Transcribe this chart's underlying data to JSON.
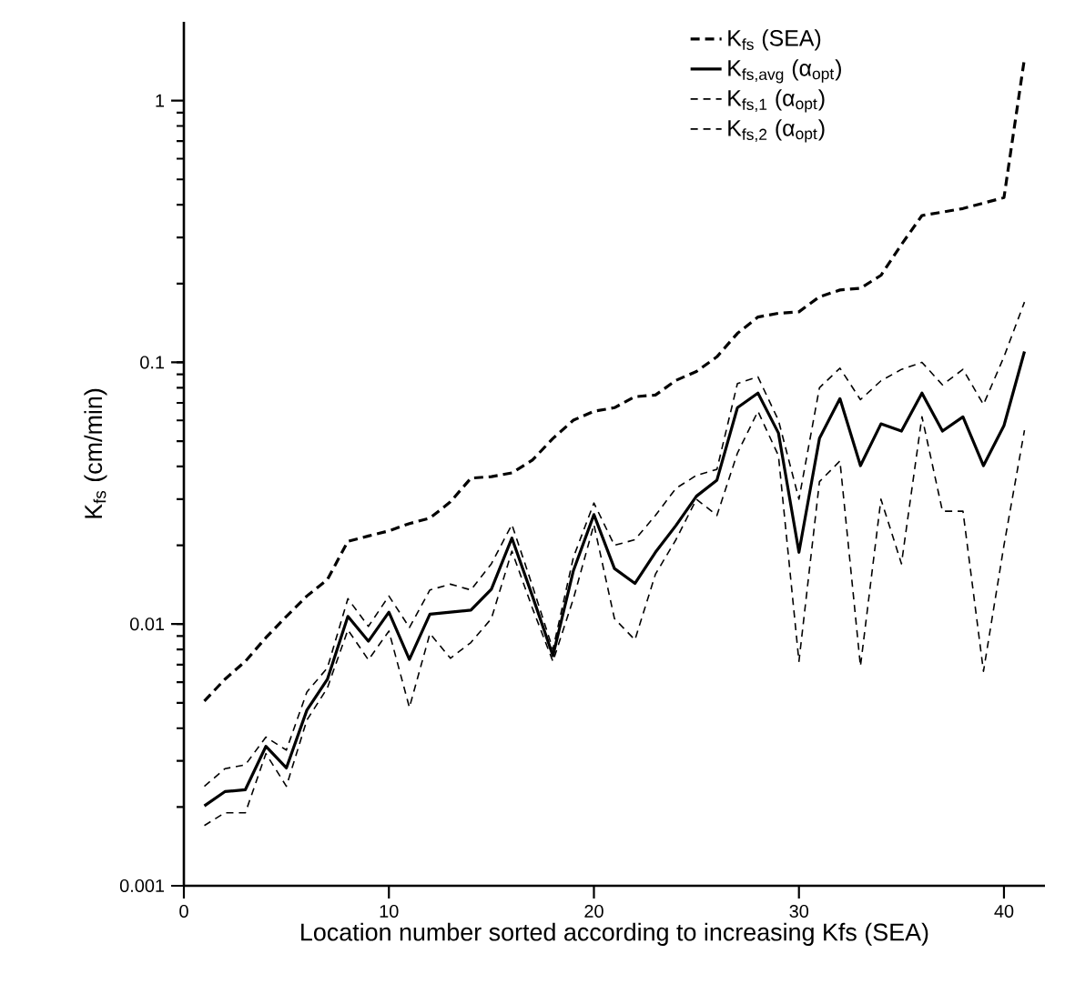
{
  "chart_data": {
    "type": "line",
    "xlabel": "Location number sorted according to increasing Kfs (SEA)",
    "ylabel": "K$_{fs}$ (cm/min)",
    "x": [
      1,
      2,
      3,
      4,
      5,
      6,
      7,
      8,
      9,
      10,
      11,
      12,
      13,
      14,
      15,
      16,
      17,
      18,
      19,
      20,
      21,
      22,
      23,
      24,
      25,
      26,
      27,
      28,
      29,
      30,
      31,
      32,
      33,
      34,
      35,
      36,
      37,
      38,
      39,
      40,
      41
    ],
    "series": [
      {
        "name": "K$_{fs}$ (SEA)",
        "color": "#000000",
        "line_style": "dashed",
        "values": [
          0.00508,
          0.00615,
          0.00721,
          0.00887,
          0.0107,
          0.0128,
          0.0148,
          0.0207,
          0.0217,
          0.0227,
          0.0242,
          0.0254,
          0.0293,
          0.0361,
          0.0366,
          0.0378,
          0.0423,
          0.0512,
          0.0601,
          0.065,
          0.0671,
          0.0739,
          0.075,
          0.0853,
          0.0923,
          0.105,
          0.129,
          0.149,
          0.154,
          0.156,
          0.178,
          0.189,
          0.192,
          0.215,
          0.282,
          0.364,
          0.375,
          0.387,
          0.406,
          0.426,
          1.45
        ]
      },
      {
        "name": "K$_{fs,avg}$ (α$_{opt}$)",
        "color": "#000000",
        "line_style": "solid",
        "values": [
          0.00202,
          0.00229,
          0.00233,
          0.00341,
          0.00282,
          0.00469,
          0.00615,
          0.0107,
          0.0086,
          0.0111,
          0.00733,
          0.0109,
          0.0111,
          0.0113,
          0.0136,
          0.0213,
          0.0128,
          0.00757,
          0.016,
          0.0262,
          0.0163,
          0.0143,
          0.0188,
          0.0238,
          0.0308,
          0.0355,
          0.0671,
          0.0763,
          0.0537,
          0.0188,
          0.0512,
          0.0727,
          0.0403,
          0.0582,
          0.0546,
          0.0763,
          0.0546,
          0.0619,
          0.0403,
          0.0573,
          0.11
        ]
      },
      {
        "name": "K$_{fs,1}$ (α$_{opt}$)",
        "color": "#000000",
        "line_style": "dashed",
        "values": [
          0.0024,
          0.0028,
          0.0029,
          0.0037,
          0.0033,
          0.0055,
          0.0068,
          0.0125,
          0.0098,
          0.0128,
          0.0097,
          0.0135,
          0.0142,
          0.0135,
          0.017,
          0.024,
          0.014,
          0.008,
          0.018,
          0.029,
          0.02,
          0.021,
          0.026,
          0.033,
          0.037,
          0.039,
          0.083,
          0.088,
          0.06,
          0.03,
          0.08,
          0.095,
          0.072,
          0.085,
          0.094,
          0.1,
          0.082,
          0.094,
          0.069,
          0.105,
          0.17
        ]
      },
      {
        "name": "K$_{fs,2}$ (α$_{opt}$)",
        "color": "#000000",
        "line_style": "dashed",
        "values": [
          0.0017,
          0.0019,
          0.0019,
          0.0032,
          0.0024,
          0.0043,
          0.0057,
          0.0095,
          0.0073,
          0.0094,
          0.0048,
          0.0092,
          0.0074,
          0.0085,
          0.0105,
          0.019,
          0.0115,
          0.0072,
          0.0125,
          0.024,
          0.0105,
          0.0087,
          0.0155,
          0.021,
          0.03,
          0.026,
          0.045,
          0.065,
          0.044,
          0.0072,
          0.035,
          0.042,
          0.0069,
          0.03,
          0.017,
          0.062,
          0.027,
          0.027,
          0.0066,
          0.02,
          0.055
        ]
      }
    ],
    "xlim": [
      0,
      42
    ],
    "ylim": [
      0.001,
      2
    ],
    "xticks": [
      0,
      10,
      20,
      30,
      40
    ],
    "yticks": [
      0.001,
      0.01,
      0.1,
      1
    ],
    "log": "y",
    "legend": "top right"
  }
}
